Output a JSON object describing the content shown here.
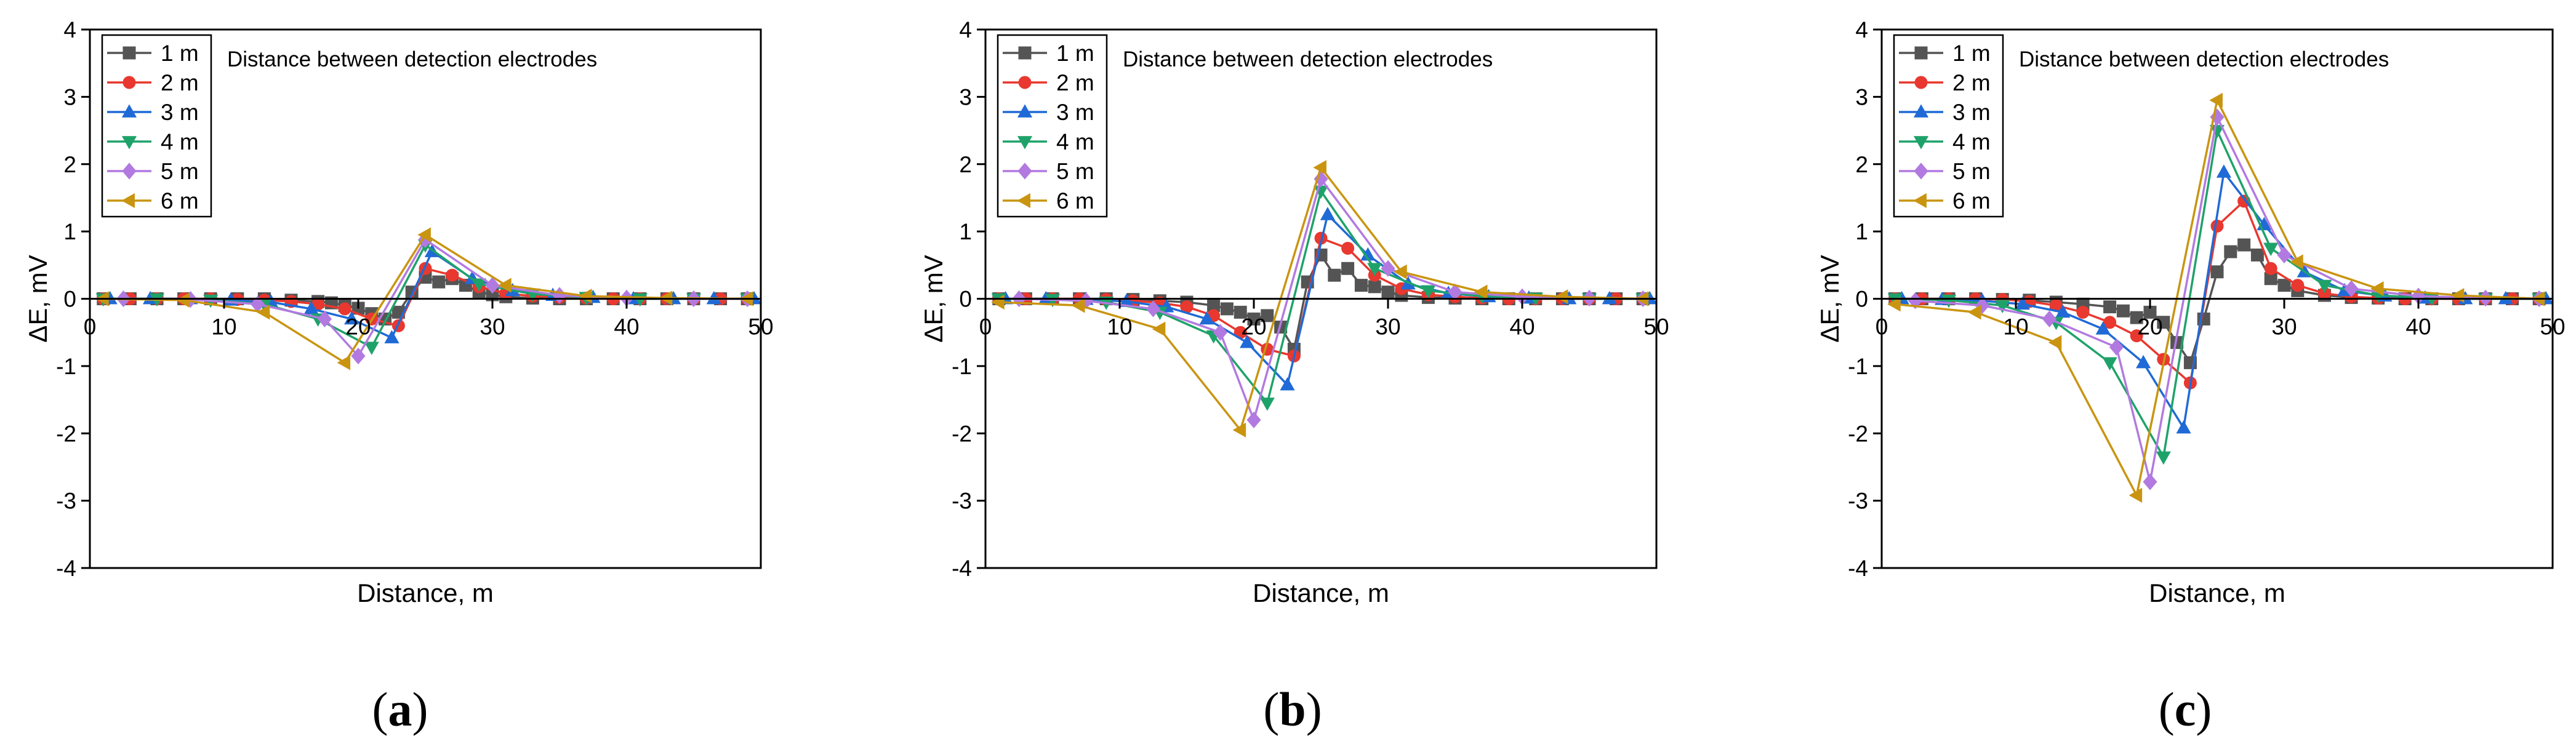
{
  "captions": [
    "a",
    "b",
    "c"
  ],
  "series_style": [
    {
      "color": "#545454",
      "marker": "square"
    },
    {
      "color": "#e8382f",
      "marker": "circle"
    },
    {
      "color": "#1f6ad6",
      "marker": "triangle-up"
    },
    {
      "color": "#1fa26a",
      "marker": "triangle-down"
    },
    {
      "color": "#b27ae0",
      "marker": "diamond"
    },
    {
      "color": "#c99511",
      "marker": "triangle-left"
    }
  ],
  "chart_data": [
    {
      "type": "line",
      "panel": "a",
      "title": "",
      "annotation": "Distance between detection electrodes",
      "xlabel": "Distance, m",
      "ylabel": "ΔE, mV",
      "xlim": [
        0,
        50
      ],
      "ylim": [
        -4,
        4
      ],
      "xticks": [
        0,
        10,
        20,
        30,
        40,
        50
      ],
      "yticks": [
        -4,
        -3,
        -2,
        -1,
        0,
        1,
        2,
        3,
        4
      ],
      "legend_position": "top-left",
      "series": [
        {
          "name": "1 m",
          "x": [
            1,
            3,
            5,
            7,
            9,
            11,
            13,
            15,
            17,
            18,
            19,
            20,
            21,
            22,
            23,
            24,
            25,
            26,
            27,
            28,
            29,
            30,
            31,
            33,
            35,
            37,
            39,
            41,
            43,
            45,
            47,
            49
          ],
          "y": [
            0,
            0,
            0,
            0,
            0,
            0,
            0,
            -0.02,
            -0.04,
            -0.06,
            -0.1,
            -0.14,
            -0.22,
            -0.3,
            -0.2,
            0.1,
            0.32,
            0.25,
            0.3,
            0.2,
            0.1,
            0.06,
            0.03,
            0.01,
            0,
            0,
            0,
            0,
            0,
            0,
            0,
            0
          ]
        },
        {
          "name": "2 m",
          "x": [
            1,
            3,
            5,
            7,
            9,
            11,
            13,
            15,
            17,
            19,
            21,
            23,
            25,
            27,
            29,
            31,
            33,
            35,
            37,
            39,
            41,
            43,
            45,
            47,
            49
          ],
          "y": [
            0,
            0,
            0,
            0,
            0,
            -0.01,
            -0.02,
            -0.04,
            -0.08,
            -0.15,
            -0.3,
            -0.4,
            0.45,
            0.35,
            0.18,
            0.08,
            0.04,
            0.02,
            0.01,
            0,
            0,
            0,
            0,
            0,
            0
          ]
        },
        {
          "name": "3 m",
          "x": [
            1.5,
            4.5,
            7.5,
            10.5,
            13.5,
            16.5,
            19.5,
            22.5,
            25.5,
            28.5,
            31.5,
            34.5,
            37.5,
            40.5,
            43.5,
            46.5,
            49.5
          ],
          "y": [
            0,
            0,
            0,
            -0.02,
            -0.05,
            -0.15,
            -0.3,
            -0.58,
            0.7,
            0.3,
            0.12,
            0.05,
            0.02,
            0,
            0,
            0,
            0
          ]
        },
        {
          "name": "4 m",
          "x": [
            1,
            5,
            9,
            13,
            17,
            21,
            25,
            29,
            33,
            37,
            41,
            45,
            49
          ],
          "y": [
            0,
            0,
            -0.02,
            -0.08,
            -0.3,
            -0.72,
            0.8,
            0.22,
            0.07,
            0.02,
            0,
            0,
            0
          ]
        },
        {
          "name": "5 m",
          "x": [
            2.5,
            7.5,
            12.5,
            17.5,
            20,
            25,
            30,
            35,
            40,
            45,
            49
          ],
          "y": [
            0,
            -0.01,
            -0.08,
            -0.3,
            -0.85,
            0.88,
            0.2,
            0.05,
            0.01,
            0,
            0
          ]
        },
        {
          "name": "6 m",
          "x": [
            1,
            7,
            13,
            19,
            25,
            31,
            37,
            43,
            49
          ],
          "y": [
            0,
            -0.02,
            -0.2,
            -0.95,
            0.95,
            0.2,
            0.04,
            0.01,
            0
          ]
        }
      ]
    },
    {
      "type": "line",
      "panel": "b",
      "title": "",
      "annotation": "Distance between detection electrodes",
      "xlabel": "Distance, m",
      "ylabel": "ΔE, mV",
      "xlim": [
        0,
        50
      ],
      "ylim": [
        -4,
        4
      ],
      "xticks": [
        0,
        10,
        20,
        30,
        40,
        50
      ],
      "yticks": [
        -4,
        -3,
        -2,
        -1,
        0,
        1,
        2,
        3,
        4
      ],
      "legend_position": "top-left",
      "series": [
        {
          "name": "1 m",
          "x": [
            1,
            3,
            5,
            7,
            9,
            11,
            13,
            15,
            17,
            18,
            19,
            20,
            21,
            22,
            23,
            24,
            25,
            26,
            27,
            28,
            29,
            30,
            31,
            33,
            35,
            37,
            39,
            41,
            43,
            45,
            47,
            49
          ],
          "y": [
            0,
            0,
            0,
            0,
            0,
            -0.01,
            -0.03,
            -0.05,
            -0.1,
            -0.15,
            -0.2,
            -0.3,
            -0.25,
            -0.42,
            -0.75,
            0.25,
            0.65,
            0.35,
            0.45,
            0.2,
            0.18,
            0.1,
            0.05,
            0.02,
            0.01,
            0,
            0,
            0,
            0,
            0,
            0,
            0
          ]
        },
        {
          "name": "2 m",
          "x": [
            1,
            3,
            5,
            7,
            9,
            11,
            13,
            15,
            17,
            19,
            21,
            23,
            25,
            27,
            29,
            31,
            33,
            35,
            37,
            39,
            41,
            43,
            45,
            47,
            49
          ],
          "y": [
            0,
            0,
            0,
            0,
            -0.01,
            -0.03,
            -0.06,
            -0.12,
            -0.25,
            -0.5,
            -0.75,
            -0.85,
            0.9,
            0.75,
            0.35,
            0.15,
            0.06,
            0.03,
            0.01,
            0,
            0,
            0,
            0,
            0,
            0
          ]
        },
        {
          "name": "3 m",
          "x": [
            1.5,
            4.5,
            7.5,
            10.5,
            13.5,
            16.5,
            19.5,
            22.5,
            25.5,
            28.5,
            31.5,
            34.5,
            37.5,
            40.5,
            43.5,
            46.5,
            49.5
          ],
          "y": [
            0,
            0,
            -0.01,
            -0.04,
            -0.12,
            -0.3,
            -0.65,
            -1.28,
            1.25,
            0.65,
            0.22,
            0.08,
            0.03,
            0.01,
            0,
            0,
            0
          ]
        },
        {
          "name": "4 m",
          "x": [
            1,
            5,
            9,
            13,
            17,
            21,
            25,
            29,
            33,
            37,
            41,
            45,
            49
          ],
          "y": [
            0,
            -0.01,
            -0.05,
            -0.2,
            -0.55,
            -1.55,
            1.6,
            0.45,
            0.12,
            0.04,
            0.01,
            0,
            0
          ]
        },
        {
          "name": "5 m",
          "x": [
            2.5,
            7.5,
            12.5,
            17.5,
            20,
            25,
            30,
            35,
            40,
            45,
            49
          ],
          "y": [
            0,
            -0.03,
            -0.15,
            -0.5,
            -1.8,
            1.78,
            0.45,
            0.1,
            0.03,
            0.01,
            0
          ]
        },
        {
          "name": "6 m",
          "x": [
            1,
            7,
            13,
            19,
            25,
            31,
            37,
            43,
            49
          ],
          "y": [
            -0.05,
            -0.1,
            -0.45,
            -1.95,
            1.95,
            0.4,
            0.1,
            0.03,
            0
          ]
        }
      ]
    },
    {
      "type": "line",
      "panel": "c",
      "title": "",
      "annotation": "Distance between detection electrodes",
      "xlabel": "Distance, m",
      "ylabel": "ΔE, mV",
      "xlim": [
        0,
        50
      ],
      "ylim": [
        -4,
        4
      ],
      "xticks": [
        0,
        10,
        20,
        30,
        40,
        50
      ],
      "yticks": [
        -4,
        -3,
        -2,
        -1,
        0,
        1,
        2,
        3,
        4
      ],
      "legend_position": "top-left",
      "series": [
        {
          "name": "1 m",
          "x": [
            1,
            3,
            5,
            7,
            9,
            11,
            13,
            15,
            17,
            18,
            19,
            20,
            21,
            22,
            23,
            24,
            25,
            26,
            27,
            28,
            29,
            30,
            31,
            33,
            35,
            37,
            39,
            41,
            43,
            45,
            47,
            49
          ],
          "y": [
            0,
            0,
            0,
            0,
            -0.01,
            -0.02,
            -0.05,
            -0.08,
            -0.12,
            -0.18,
            -0.28,
            -0.2,
            -0.35,
            -0.65,
            -0.95,
            -0.3,
            0.4,
            0.7,
            0.8,
            0.65,
            0.3,
            0.2,
            0.12,
            0.05,
            0.02,
            0.01,
            0,
            0,
            0,
            0,
            0,
            0
          ]
        },
        {
          "name": "2 m",
          "x": [
            1,
            3,
            5,
            7,
            9,
            11,
            13,
            15,
            17,
            19,
            21,
            23,
            25,
            27,
            29,
            31,
            33,
            35,
            37,
            39,
            41,
            43,
            45,
            47,
            49
          ],
          "y": [
            0,
            0,
            0,
            0,
            -0.01,
            -0.04,
            -0.1,
            -0.2,
            -0.35,
            -0.55,
            -0.9,
            -1.25,
            1.08,
            1.45,
            0.45,
            0.2,
            0.08,
            0.03,
            0.01,
            0,
            0,
            0,
            0,
            0,
            0
          ]
        },
        {
          "name": "3 m",
          "x": [
            1.5,
            4.5,
            7.5,
            10.5,
            13.5,
            16.5,
            19.5,
            22.5,
            25.5,
            28.5,
            31.5,
            34.5,
            37.5,
            40.5,
            43.5,
            46.5,
            49.5
          ],
          "y": [
            0,
            -0.01,
            -0.03,
            -0.08,
            -0.2,
            -0.45,
            -0.95,
            -1.92,
            1.88,
            1.1,
            0.4,
            0.12,
            0.04,
            0.01,
            0,
            0,
            0
          ]
        },
        {
          "name": "4 m",
          "x": [
            1,
            5,
            9,
            13,
            17,
            21,
            25,
            29,
            33,
            37,
            41,
            45,
            49
          ],
          "y": [
            0,
            -0.02,
            -0.1,
            -0.35,
            -0.95,
            -2.35,
            2.5,
            0.75,
            0.2,
            0.05,
            0.01,
            0,
            0
          ]
        },
        {
          "name": "5 m",
          "x": [
            2.5,
            7.5,
            12.5,
            17.5,
            20,
            25,
            30,
            35,
            40,
            45,
            49
          ],
          "y": [
            -0.03,
            -0.1,
            -0.3,
            -0.72,
            -2.72,
            2.7,
            0.65,
            0.15,
            0.04,
            0.01,
            0
          ]
        },
        {
          "name": "6 m",
          "x": [
            1,
            7,
            13,
            19,
            25,
            31,
            37,
            43,
            49
          ],
          "y": [
            -0.08,
            -0.2,
            -0.65,
            -2.92,
            2.95,
            0.55,
            0.15,
            0.05,
            0
          ]
        }
      ]
    }
  ]
}
